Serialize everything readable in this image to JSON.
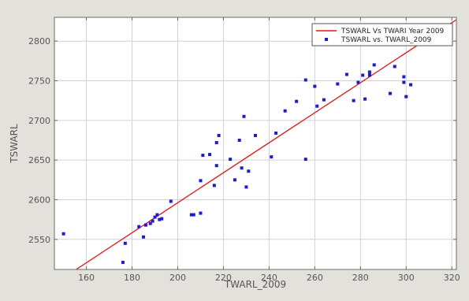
{
  "chart_data": {
    "type": "scatter",
    "xlabel": "TWARL_2009",
    "ylabel": "TSWARL",
    "xlim": [
      146,
      322
    ],
    "ylim": [
      2512,
      2830
    ],
    "grid": true,
    "colors": {
      "fit_line": "#ee1111",
      "points": "#1a1ad8",
      "plot_bg": "#ffffff",
      "figure_bg": "#e2e1dc",
      "grid": "#d2d2d2"
    },
    "x_ticks": [
      160,
      180,
      200,
      220,
      240,
      260,
      280,
      300,
      320
    ],
    "y_ticks": [
      2550,
      2600,
      2650,
      2700,
      2750,
      2800
    ],
    "x_tick_labels": [
      "160",
      "180",
      "200",
      "220",
      "240",
      "260",
      "280",
      "300",
      "320"
    ],
    "y_tick_labels": [
      "2550",
      "2600",
      "2650",
      "2700",
      "2750",
      "2800"
    ],
    "legend": {
      "position": "top-right",
      "entries": [
        {
          "label": "TSWARL Vs TWARI Year 2009",
          "marker": "line"
        },
        {
          "label": "TSWARL vs. TWARL_2009",
          "marker": "point"
        }
      ]
    },
    "series": [
      {
        "name": "TSWARL Vs TWARI Year 2009",
        "kind": "line",
        "x": [
          146,
          322
        ],
        "y": [
          2494,
          2827
        ]
      },
      {
        "name": "TSWARL vs. TWARL_2009",
        "kind": "scatter",
        "points": [
          [
            150,
            2557
          ],
          [
            176,
            2521
          ],
          [
            177,
            2545
          ],
          [
            183,
            2566
          ],
          [
            185,
            2553
          ],
          [
            186,
            2568
          ],
          [
            188,
            2570
          ],
          [
            189,
            2573
          ],
          [
            190,
            2578
          ],
          [
            191,
            2581
          ],
          [
            192,
            2575
          ],
          [
            193,
            2576
          ],
          [
            197,
            2598
          ],
          [
            206,
            2581
          ],
          [
            207,
            2581
          ],
          [
            210,
            2583
          ],
          [
            210,
            2624
          ],
          [
            211,
            2656
          ],
          [
            214,
            2657
          ],
          [
            216,
            2618
          ],
          [
            217,
            2643
          ],
          [
            217,
            2672
          ],
          [
            218,
            2681
          ],
          [
            223,
            2651
          ],
          [
            225,
            2625
          ],
          [
            227,
            2675
          ],
          [
            228,
            2640
          ],
          [
            229,
            2705
          ],
          [
            230,
            2616
          ],
          [
            231,
            2636
          ],
          [
            234,
            2681
          ],
          [
            241,
            2654
          ],
          [
            243,
            2684
          ],
          [
            247,
            2712
          ],
          [
            252,
            2724
          ],
          [
            256,
            2751
          ],
          [
            256,
            2651
          ],
          [
            260,
            2743
          ],
          [
            261,
            2718
          ],
          [
            264,
            2726
          ],
          [
            270,
            2746
          ],
          [
            274,
            2758
          ],
          [
            277,
            2725
          ],
          [
            279,
            2748
          ],
          [
            281,
            2757
          ],
          [
            282,
            2727
          ],
          [
            284,
            2761
          ],
          [
            284,
            2757
          ],
          [
            286,
            2770
          ],
          [
            293,
            2734
          ],
          [
            295,
            2768
          ],
          [
            299,
            2748
          ],
          [
            299,
            2755
          ],
          [
            300,
            2730
          ],
          [
            302,
            2745
          ]
        ]
      }
    ]
  }
}
